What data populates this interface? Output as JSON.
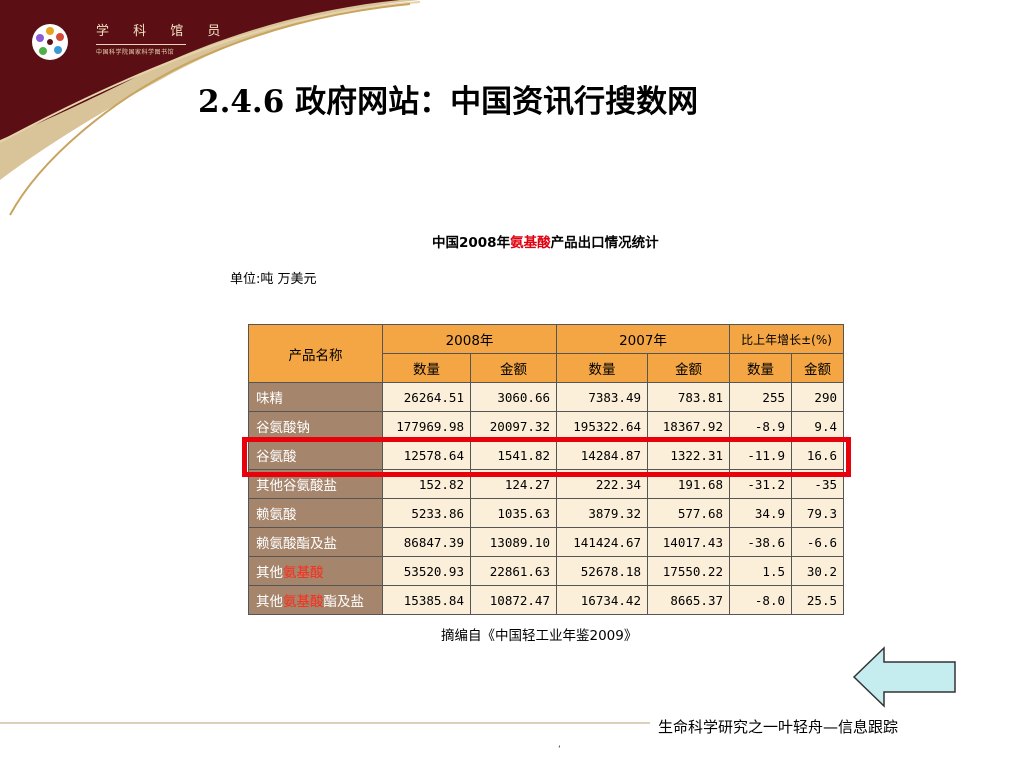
{
  "header": {
    "logo_text": "学 科 馆 员",
    "logo_subtitle": "中国科学院国家科学图书馆"
  },
  "page": {
    "title": "2.4.6  政府网站：中国资讯行搜数网"
  },
  "table_title": {
    "prefix": "中国2008年",
    "highlight": "氨基酸",
    "suffix": "产品出口情况统计"
  },
  "unit_line": "单位:吨  万美元",
  "table": {
    "header": {
      "product_name": "产品名称",
      "year_2008": "2008年",
      "year_2007": "2007年",
      "growth": "比上年增长±(%)",
      "quantity": "数量",
      "amount": "金额"
    },
    "rows": [
      {
        "name": [
          "味精"
        ],
        "q2008": "26264.51",
        "a2008": "3060.66",
        "q2007": "7383.49",
        "a2007": "783.81",
        "gq": "255",
        "ga": "290"
      },
      {
        "name": [
          "谷氨酸钠"
        ],
        "q2008": "177969.98",
        "a2008": "20097.32",
        "q2007": "195322.64",
        "a2007": "18367.92",
        "gq": "-8.9",
        "ga": "9.4"
      },
      {
        "name": [
          "谷氨酸"
        ],
        "q2008": "12578.64",
        "a2008": "1541.82",
        "q2007": "14284.87",
        "a2007": "1322.31",
        "gq": "-11.9",
        "ga": "16.6"
      },
      {
        "name": [
          "其他谷氨酸盐"
        ],
        "q2008": "152.82",
        "a2008": "124.27",
        "q2007": "222.34",
        "a2007": "191.68",
        "gq": "-31.2",
        "ga": "-35"
      },
      {
        "name": [
          "赖氨酸"
        ],
        "q2008": "5233.86",
        "a2008": "1035.63",
        "q2007": "3879.32",
        "a2007": "577.68",
        "gq": "34.9",
        "ga": "79.3"
      },
      {
        "name": [
          "赖氨酸酯及盐"
        ],
        "q2008": "86847.39",
        "a2008": "13089.10",
        "q2007": "141424.67",
        "a2007": "14017.43",
        "gq": "-38.6",
        "ga": "-6.6"
      },
      {
        "name": [
          "其他",
          "氨基酸"
        ],
        "q2008": "53520.93",
        "a2008": "22861.63",
        "q2007": "52678.18",
        "a2007": "17550.22",
        "gq": "1.5",
        "ga": "30.2"
      },
      {
        "name": [
          "其他",
          "氨基酸",
          "酯及盐"
        ],
        "q2008": "15385.84",
        "a2008": "10872.47",
        "q2007": "16734.42",
        "a2007": "8665.37",
        "gq": "-8.0",
        "ga": "25.5"
      }
    ]
  },
  "source": "摘编自《中国轻工业年鉴2009》",
  "footer": {
    "text": "生命科学研究之一叶轻舟—信息跟踪",
    "mark": "ʻ"
  },
  "colors": {
    "header_maroon": "#5b0f14",
    "swoosh_gold": "#c8a45e",
    "table_header": "#f5a644",
    "name_column": "#a5856c",
    "value_cell": "#fcefd9",
    "highlight_red": "#e8000b",
    "arrow_fill": "#c5ecef"
  },
  "icons": {
    "logo": "logo-icon",
    "back": "back-arrow-icon"
  }
}
